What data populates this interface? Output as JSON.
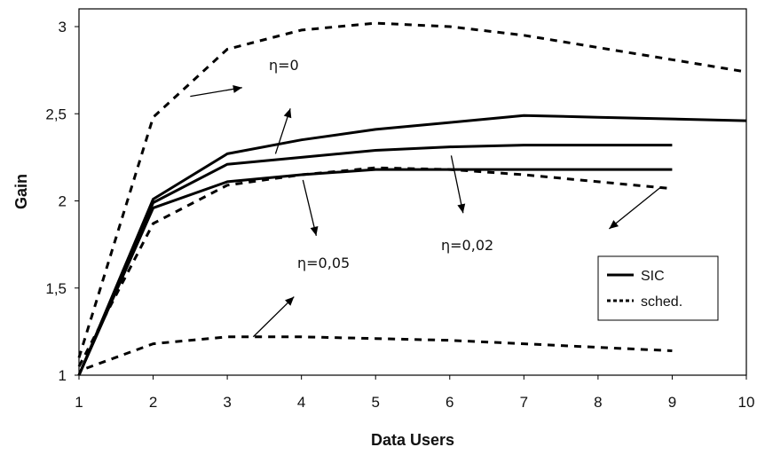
{
  "chart_data": {
    "type": "line",
    "xlabel": "Data Users",
    "ylabel": "Gain",
    "xlim": [
      1,
      10
    ],
    "ylim": [
      1,
      3.05
    ],
    "x_ticks": [
      "1",
      "2",
      "3",
      "4",
      "5",
      "6",
      "7",
      "8",
      "9",
      "10"
    ],
    "y_ticks": [
      "1",
      "1,5",
      "2",
      "2,5",
      "3"
    ],
    "y_tick_values": [
      1,
      1.5,
      2,
      2.5,
      3
    ],
    "grid": false,
    "legend_position": "right",
    "legend": [
      {
        "label": "SIC",
        "style": "solid"
      },
      {
        "label": "sched.",
        "style": "dashed"
      }
    ],
    "annotations": [
      {
        "text": "η=0"
      },
      {
        "text": "η=0,05"
      },
      {
        "text": "η=0,02"
      }
    ],
    "series": [
      {
        "style": "solid",
        "x": [
          1,
          2,
          3,
          4,
          5,
          6,
          7,
          8,
          9,
          10
        ],
        "y": [
          1,
          2.01,
          2.27,
          2.35,
          2.41,
          2.45,
          2.49,
          2.48,
          2.47,
          2.46
        ]
      },
      {
        "style": "solid",
        "x": [
          1,
          2,
          3,
          4,
          5,
          6,
          7,
          8,
          9
        ],
        "y": [
          1,
          1.99,
          2.21,
          2.25,
          2.29,
          2.31,
          2.32,
          2.32,
          2.32
        ]
      },
      {
        "style": "solid",
        "x": [
          1,
          2,
          3,
          4,
          5,
          6,
          7,
          8,
          9
        ],
        "y": [
          1,
          1.96,
          2.11,
          2.15,
          2.18,
          2.18,
          2.18,
          2.18,
          2.18
        ]
      },
      {
        "style": "dashed",
        "x": [
          1,
          2,
          3,
          4,
          5,
          6,
          7,
          8,
          9,
          10
        ],
        "y": [
          1.1,
          2.48,
          2.87,
          2.98,
          3.02,
          3.0,
          2.95,
          2.88,
          2.81,
          2.74
        ]
      },
      {
        "style": "dashed",
        "x": [
          1,
          2,
          3,
          4,
          5,
          6,
          7,
          8,
          9
        ],
        "y": [
          1.05,
          1.87,
          2.09,
          2.15,
          2.19,
          2.18,
          2.15,
          2.11,
          2.07
        ]
      },
      {
        "style": "dashed",
        "x": [
          1.1,
          2,
          3,
          4,
          5,
          6,
          7,
          8,
          9
        ],
        "y": [
          1.04,
          1.18,
          1.22,
          1.22,
          1.21,
          1.2,
          1.18,
          1.16,
          1.14
        ]
      }
    ]
  }
}
